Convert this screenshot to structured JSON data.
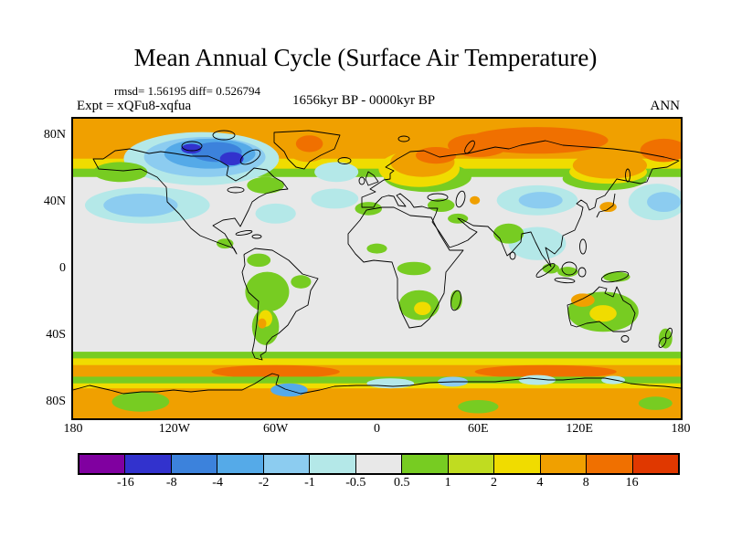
{
  "title": "Mean Annual Cycle (Surface Air Temperature)",
  "stats_line": "rmsd= 1.56195 diff= 0.526794",
  "expt_label": "Expt = xQFu8-xqfua",
  "period_label": "1656kyr BP - 0000kyr BP",
  "season_label": "ANN",
  "axes": {
    "y_ticks": [
      "80N",
      "40N",
      "0",
      "40S",
      "80S"
    ],
    "y_tick_lats": [
      80,
      40,
      0,
      -40,
      -80
    ],
    "x_ticks": [
      "180",
      "120W",
      "60W",
      "0",
      "60E",
      "120E",
      "180"
    ],
    "x_tick_lons": [
      -180,
      -120,
      -60,
      0,
      60,
      120,
      180
    ]
  },
  "colorbar": {
    "tick_labels": [
      "-16",
      "-8",
      "-4",
      "-2",
      "-1",
      "-0.5",
      "0.5",
      "1",
      "2",
      "4",
      "8",
      "16"
    ],
    "levels": [
      -16,
      -8,
      -4,
      -2,
      -1,
      -0.5,
      0.5,
      1,
      2,
      4,
      8,
      16
    ],
    "colors": [
      "#8000A0",
      "#3232CD",
      "#3C82DC",
      "#55AAE8",
      "#8CCCF0",
      "#B4E8E8",
      "#E8E8E8",
      "#77CC22",
      "#C0DC20",
      "#F0DC00",
      "#F0A000",
      "#F07000",
      "#E03800"
    ]
  },
  "chart_data": {
    "type": "heatmap",
    "title": "Mean Annual Cycle (Surface Air Temperature)",
    "rmsd": 1.56195,
    "diff": 0.526794,
    "experiment": "xQFu8-xqfua",
    "period": "1656kyr BP - 0000kyr BP",
    "season": "ANN",
    "lon_range": [
      -180,
      180
    ],
    "lat_range": [
      -90,
      90
    ],
    "contour_levels": [
      -16,
      -8,
      -4,
      -2,
      -1,
      -0.5,
      0.5,
      1,
      2,
      4,
      8,
      16
    ],
    "background_level": 0,
    "anomaly_regions": [
      {
        "name": "arctic-green-fringe",
        "lon": 0,
        "lat": 74,
        "rlon": 180,
        "rlat": 19,
        "level": 0.8
      },
      {
        "name": "arctic-yellow-band",
        "lon": 0,
        "lat": 76,
        "rlon": 180,
        "rlat": 16,
        "level": 3
      },
      {
        "name": "arctic-orange-band",
        "lon": 0,
        "lat": 79,
        "rlon": 180,
        "rlat": 13,
        "level": 6
      },
      {
        "name": "siberia-deep-orange",
        "lon": 95,
        "lat": 77,
        "rlon": 42,
        "rlat": 8,
        "level": 10
      },
      {
        "name": "kara-sea-deep-orange",
        "lon": 60,
        "lat": 74,
        "rlon": 18,
        "rlat": 7,
        "level": 10
      },
      {
        "name": "chukchi-deep-orange",
        "lon": 170,
        "lat": 71,
        "rlon": 14,
        "rlat": 7,
        "level": 10
      },
      {
        "name": "europe-green-dip",
        "lon": 30,
        "lat": 55,
        "rlon": 26,
        "rlat": 9,
        "level": 0.8
      },
      {
        "name": "europe-yellow-dip",
        "lon": 25,
        "lat": 60,
        "rlon": 24,
        "rlat": 11,
        "level": 3
      },
      {
        "name": "europe-orange-dip",
        "lon": 27,
        "lat": 64,
        "rlon": 19,
        "rlat": 9,
        "level": 6
      },
      {
        "name": "scandinavia-deep-orange",
        "lon": 35,
        "lat": 68,
        "rlon": 12,
        "rlat": 5,
        "level": 10
      },
      {
        "name": "east-asia-green-fringe",
        "lon": 135,
        "lat": 54,
        "rlon": 25,
        "rlat": 7,
        "level": 0.8
      },
      {
        "name": "east-asia-yellow-fringe",
        "lon": 137,
        "lat": 58,
        "rlon": 23,
        "rlat": 7,
        "level": 3
      },
      {
        "name": "east-siberia-orange-dip",
        "lon": 138,
        "lat": 62,
        "rlon": 22,
        "rlat": 8,
        "level": 6
      },
      {
        "name": "canada-cyan-outer",
        "lon": -104,
        "lat": 66,
        "rlon": 46,
        "rlat": 16,
        "level": -0.8
      },
      {
        "name": "canada-light-blue",
        "lon": -102,
        "lat": 67,
        "rlon": 36,
        "rlat": 12,
        "level": -1.5
      },
      {
        "name": "canada-blue",
        "lon": -99,
        "lat": 69,
        "rlon": 27,
        "rlat": 9,
        "level": -3
      },
      {
        "name": "canada-deep-blue",
        "lon": -95,
        "lat": 70,
        "rlon": 15,
        "rlat": 6,
        "level": -6
      },
      {
        "name": "hudson-navy-spot",
        "lon": -86,
        "lat": 66,
        "rlon": 7,
        "rlat": 4,
        "level": -12
      },
      {
        "name": "arctic-navy-spot",
        "lon": -110,
        "lat": 72,
        "rlon": 6,
        "rlat": 3,
        "level": -12
      },
      {
        "name": "greenland-orange",
        "lon": -41,
        "lat": 73,
        "rlon": 13,
        "rlat": 9,
        "level": 6
      },
      {
        "name": "greenland-deep-orange",
        "lon": -40,
        "lat": 75,
        "rlon": 8,
        "rlat": 5,
        "level": 10
      },
      {
        "name": "alaska-green",
        "lon": -152,
        "lat": 58,
        "rlon": 16,
        "rlat": 6,
        "level": 0.8
      },
      {
        "name": "quebec-green",
        "lon": -66,
        "lat": 50,
        "rlon": 11,
        "rlat": 5,
        "level": 0.8
      },
      {
        "name": "greenland-sea-cyan",
        "lon": -24,
        "lat": 58,
        "rlon": 13,
        "rlat": 6,
        "level": -0.8
      },
      {
        "name": "north-pacific-cyan",
        "lon": -136,
        "lat": 38,
        "rlon": 37,
        "rlat": 11,
        "level": -0.8
      },
      {
        "name": "north-pacific-light-blue",
        "lon": -140,
        "lat": 38,
        "rlon": 22,
        "rlat": 7,
        "level": -1.5
      },
      {
        "name": "west-pacific-cyan",
        "lon": 166,
        "lat": 40,
        "rlon": 17,
        "rlat": 11,
        "level": -0.8
      },
      {
        "name": "west-pacific-light-blue",
        "lon": 170,
        "lat": 40,
        "rlon": 10,
        "rlat": 6,
        "level": -1.5
      },
      {
        "name": "central-asia-cyan",
        "lon": 95,
        "lat": 41,
        "rlon": 24,
        "rlat": 9,
        "level": -0.8
      },
      {
        "name": "tibet-light-blue",
        "lon": 97,
        "lat": 41,
        "rlon": 13,
        "rlat": 5,
        "level": -1.5
      },
      {
        "name": "west-atlantic-cyan",
        "lon": -60,
        "lat": 33,
        "rlon": 12,
        "rlat": 6,
        "level": -0.8
      },
      {
        "name": "mid-atlantic-cyan",
        "lon": -25,
        "lat": 42,
        "rlon": 14,
        "rlat": 6,
        "level": -0.8
      },
      {
        "name": "bay-of-bengal-cyan",
        "lon": 95,
        "lat": 15,
        "rlon": 17,
        "rlat": 10,
        "level": -0.8
      },
      {
        "name": "iberia-green",
        "lon": -5,
        "lat": 36,
        "rlon": 8,
        "rlat": 4,
        "level": 0.8
      },
      {
        "name": "anatolia-green",
        "lon": 38,
        "lat": 38,
        "rlon": 8,
        "rlat": 4,
        "level": 0.8
      },
      {
        "name": "mideast-green",
        "lon": 48,
        "lat": 30,
        "rlon": 6,
        "rlat": 3,
        "level": 0.8
      },
      {
        "name": "caspian-orange-spot",
        "lon": 58,
        "lat": 41,
        "rlon": 3,
        "rlat": 2.5,
        "level": 6
      },
      {
        "name": "india-green",
        "lon": 78,
        "lat": 21,
        "rlon": 9,
        "rlat": 6,
        "level": 0.8
      },
      {
        "name": "japan-orange-spot",
        "lon": 137,
        "lat": 37,
        "rlon": 5,
        "rlat": 3,
        "level": 6
      },
      {
        "name": "sahel-green",
        "lon": 0,
        "lat": 12,
        "rlon": 6,
        "rlat": 3,
        "level": 0.8
      },
      {
        "name": "central-africa-green",
        "lon": 22,
        "lat": 0,
        "rlon": 10,
        "rlat": 4,
        "level": 0.8
      },
      {
        "name": "south-africa-green",
        "lon": 25,
        "lat": -22,
        "rlon": 12,
        "rlat": 9,
        "level": 0.8
      },
      {
        "name": "south-africa-yellow",
        "lon": 27,
        "lat": -24,
        "rlon": 5,
        "rlat": 4,
        "level": 3
      },
      {
        "name": "madagascar-green",
        "lon": 47,
        "lat": -19,
        "rlon": 3.5,
        "rlat": 6,
        "level": 0.8
      },
      {
        "name": "colombia-green",
        "lon": -70,
        "lat": 5,
        "rlon": 7,
        "rlat": 4,
        "level": 0.8
      },
      {
        "name": "central-america-green",
        "lon": -90,
        "lat": 15,
        "rlon": 5,
        "rlat": 3,
        "level": 0.8
      },
      {
        "name": "andes-amazon-green",
        "lon": -65,
        "lat": -14,
        "rlon": 13,
        "rlat": 12,
        "level": 0.8
      },
      {
        "name": "south-cone-green",
        "lon": -66,
        "lat": -35,
        "rlon": 8,
        "rlat": 11,
        "level": 0.8
      },
      {
        "name": "pampas-yellow",
        "lon": -66,
        "lat": -30,
        "rlon": 4,
        "rlat": 5,
        "level": 3
      },
      {
        "name": "chile-orange-spot",
        "lon": -68,
        "lat": -33,
        "rlon": 2.5,
        "rlat": 3,
        "level": 6
      },
      {
        "name": "ne-brazil-green",
        "lon": -45,
        "lat": -8,
        "rlon": 6,
        "rlat": 4,
        "level": 0.8
      },
      {
        "name": "sumatra-green",
        "lon": 103,
        "lat": 0,
        "rlon": 5,
        "rlat": 3,
        "level": 0.8
      },
      {
        "name": "borneo-green",
        "lon": 113,
        "lat": -2,
        "rlon": 6,
        "rlat": 3,
        "level": 0.8
      },
      {
        "name": "new-guinea-green",
        "lon": 142,
        "lat": -5,
        "rlon": 8,
        "rlat": 3,
        "level": 0.8
      },
      {
        "name": "australia-green",
        "lon": 134,
        "lat": -26,
        "rlon": 21,
        "rlat": 12,
        "level": 0.8
      },
      {
        "name": "nw-australia-orange",
        "lon": 122,
        "lat": -19,
        "rlon": 7,
        "rlat": 4,
        "level": 6
      },
      {
        "name": "central-australia-yellow",
        "lon": 134,
        "lat": -27,
        "rlon": 8,
        "rlat": 5,
        "level": 3
      },
      {
        "name": "new-zealand-green",
        "lon": 171,
        "lat": -42,
        "rlon": 4,
        "rlat": 6,
        "level": 0.8
      },
      {
        "name": "southern-ocean-green-north",
        "lon": 0,
        "lat": -55,
        "rlon": 180,
        "rlat": 5,
        "level": 0.8
      },
      {
        "name": "southern-ocean-yellow",
        "lon": 0,
        "lat": -59,
        "rlon": 180,
        "rlat": 5,
        "level": 3
      },
      {
        "name": "southern-ocean-orange",
        "lon": 0,
        "lat": -63,
        "rlon": 180,
        "rlat": 5,
        "level": 6
      },
      {
        "name": "southern-ocean-deep-orange-west",
        "lon": -60,
        "lat": -62,
        "rlon": 38,
        "rlat": 4,
        "level": 10
      },
      {
        "name": "southern-ocean-deep-orange-east",
        "lon": 100,
        "lat": -62,
        "rlon": 42,
        "rlat": 4,
        "level": 10
      },
      {
        "name": "antarctic-coast-green",
        "lon": 0,
        "lat": -68,
        "rlon": 180,
        "rlat": 3,
        "level": 0.8
      },
      {
        "name": "antarctica-yellow-fringe",
        "lon": 0,
        "lat": -73,
        "rlon": 180,
        "rlat": 4,
        "level": 3
      },
      {
        "name": "antarctica-orange",
        "lon": 0,
        "lat": -83,
        "rlon": 180,
        "rlat": 11,
        "level": 6
      },
      {
        "name": "marie-byrd-green",
        "lon": -140,
        "lat": -80,
        "rlon": 17,
        "rlat": 6,
        "level": 0.8
      },
      {
        "name": "east-antarctica-green",
        "lon": 60,
        "lat": -83,
        "rlon": 12,
        "rlat": 4,
        "level": 0.8
      },
      {
        "name": "ross-green",
        "lon": 165,
        "lat": -81,
        "rlon": 10,
        "rlat": 4,
        "level": 0.8
      },
      {
        "name": "weddell-blue",
        "lon": -52,
        "lat": -73,
        "rlon": 11,
        "rlat": 4,
        "level": -3
      },
      {
        "name": "dronning-maud-cyan",
        "lon": 8,
        "lat": -69,
        "rlon": 14,
        "rlat": 3,
        "level": -0.8
      },
      {
        "name": "enderby-light-blue",
        "lon": 45,
        "lat": -68,
        "rlon": 9,
        "rlat": 3,
        "level": -1.5
      },
      {
        "name": "wilkes-cyan",
        "lon": 95,
        "lat": -67,
        "rlon": 11,
        "rlat": 3,
        "level": -0.8
      },
      {
        "name": "adelie-cyan",
        "lon": 140,
        "lat": -67,
        "rlon": 7,
        "rlat": 2.5,
        "level": -0.8
      }
    ]
  }
}
